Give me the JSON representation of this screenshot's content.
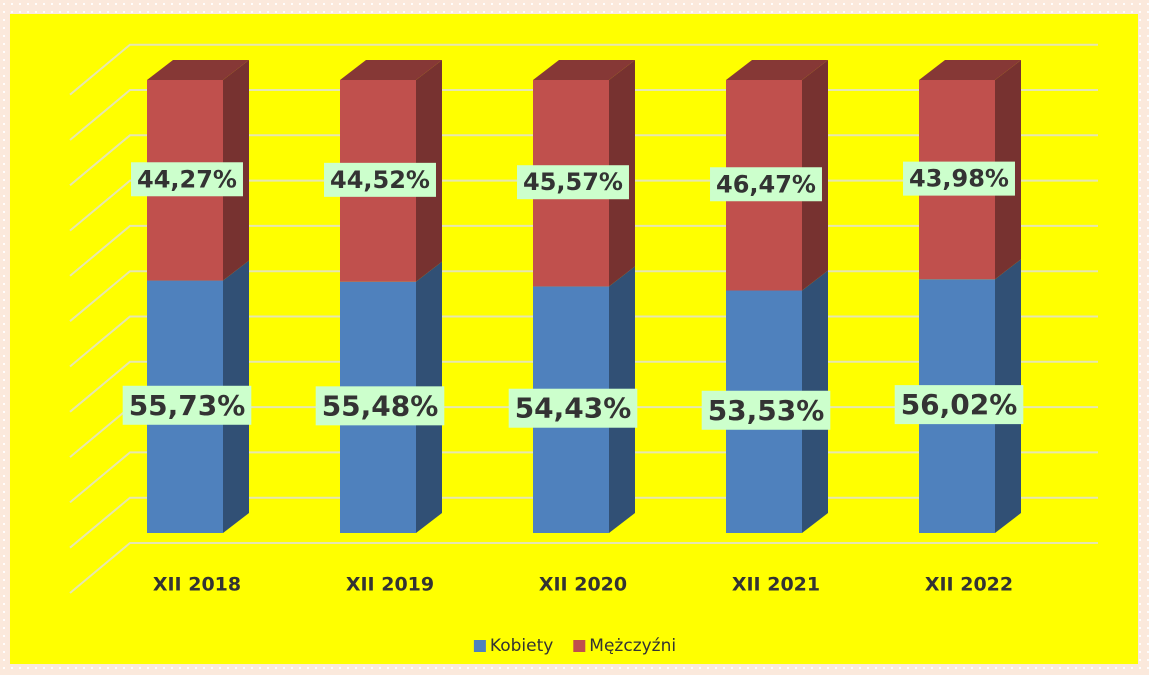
{
  "chart_data": {
    "type": "bar",
    "stacked": true,
    "three_d": true,
    "categories": [
      "XII 2018",
      "XII 2019",
      "XII 2020",
      "XII 2021",
      "XII 2022"
    ],
    "series": [
      {
        "name": "Kobiety",
        "color": "#4f81bd",
        "values": [
          55.73,
          55.48,
          54.43,
          53.53,
          56.02
        ],
        "value_labels": [
          "55,73%",
          "55,48%",
          "54,43%",
          "53,53%",
          "56,02%"
        ]
      },
      {
        "name": "Mężczyźni",
        "color": "#c0504d",
        "values": [
          44.27,
          44.52,
          45.57,
          46.47,
          43.98
        ],
        "value_labels": [
          "44,27%",
          "44,52%",
          "45,57%",
          "46,47%",
          "43,98%"
        ]
      }
    ],
    "ylim": [
      0,
      110
    ],
    "yticks": [
      0,
      10,
      20,
      30,
      40,
      50,
      60,
      70,
      80,
      90,
      100,
      110
    ],
    "grid": true,
    "legend": "bottom"
  }
}
